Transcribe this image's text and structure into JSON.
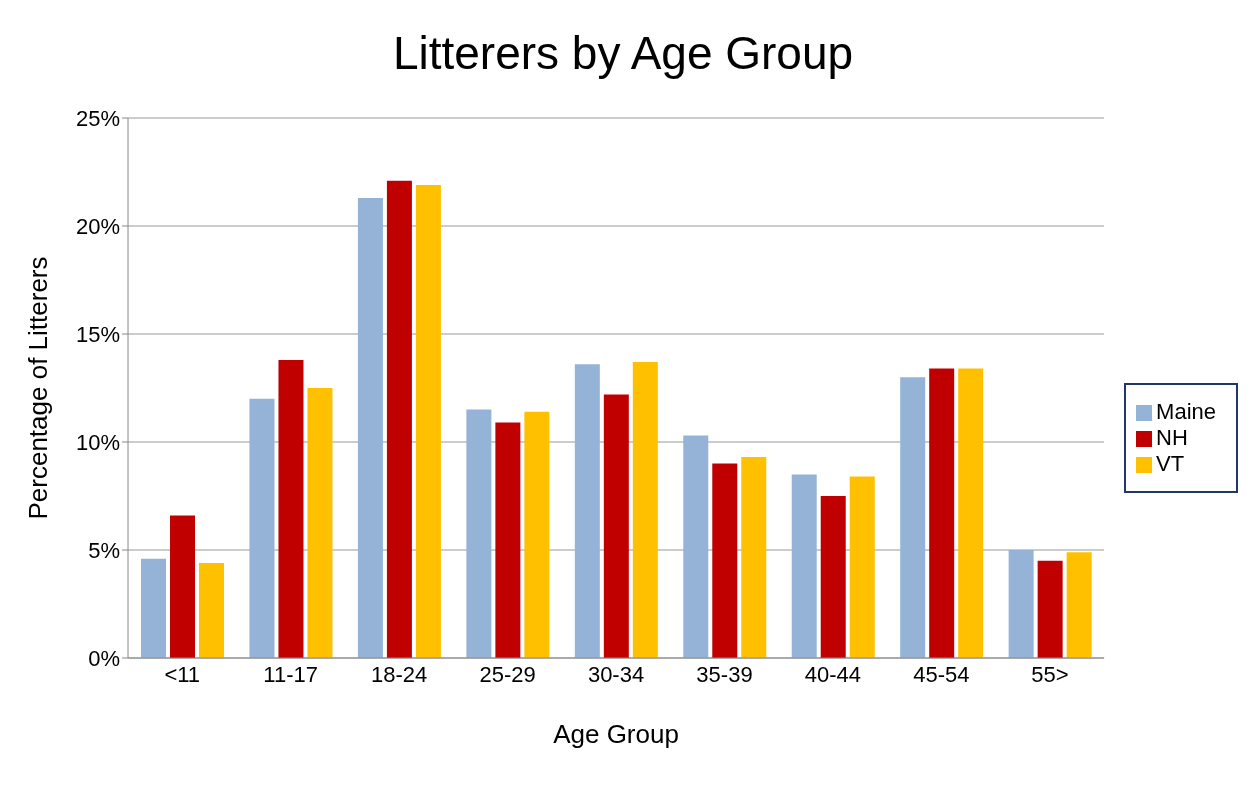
{
  "chart_data": {
    "type": "bar",
    "title": "Litterers by Age Group",
    "xlabel": "Age Group",
    "ylabel": "Percentage of Litterers",
    "categories": [
      "<11",
      "11-17",
      "18-24",
      "25-29",
      "30-34",
      "35-39",
      "40-44",
      "45-54",
      "55>"
    ],
    "series": [
      {
        "name": "Maine",
        "color": "#95b3d7",
        "values": [
          4.6,
          12.0,
          21.3,
          11.5,
          13.6,
          10.3,
          8.5,
          13.0,
          5.0
        ]
      },
      {
        "name": "NH",
        "color": "#c00000",
        "values": [
          6.6,
          13.8,
          22.1,
          10.9,
          12.2,
          9.0,
          7.5,
          13.4,
          4.5
        ]
      },
      {
        "name": "VT",
        "color": "#ffc000",
        "values": [
          4.4,
          12.5,
          21.9,
          11.4,
          13.7,
          9.3,
          8.4,
          13.4,
          4.9
        ]
      }
    ],
    "ylim": [
      0,
      25
    ],
    "yticks": [
      {
        "value": 0,
        "label": "0%"
      },
      {
        "value": 5,
        "label": "5%"
      },
      {
        "value": 10,
        "label": "10%"
      },
      {
        "value": 15,
        "label": "15%"
      },
      {
        "value": 20,
        "label": "20%"
      },
      {
        "value": 25,
        "label": "25%"
      }
    ],
    "grid": "y",
    "legend": "right"
  }
}
